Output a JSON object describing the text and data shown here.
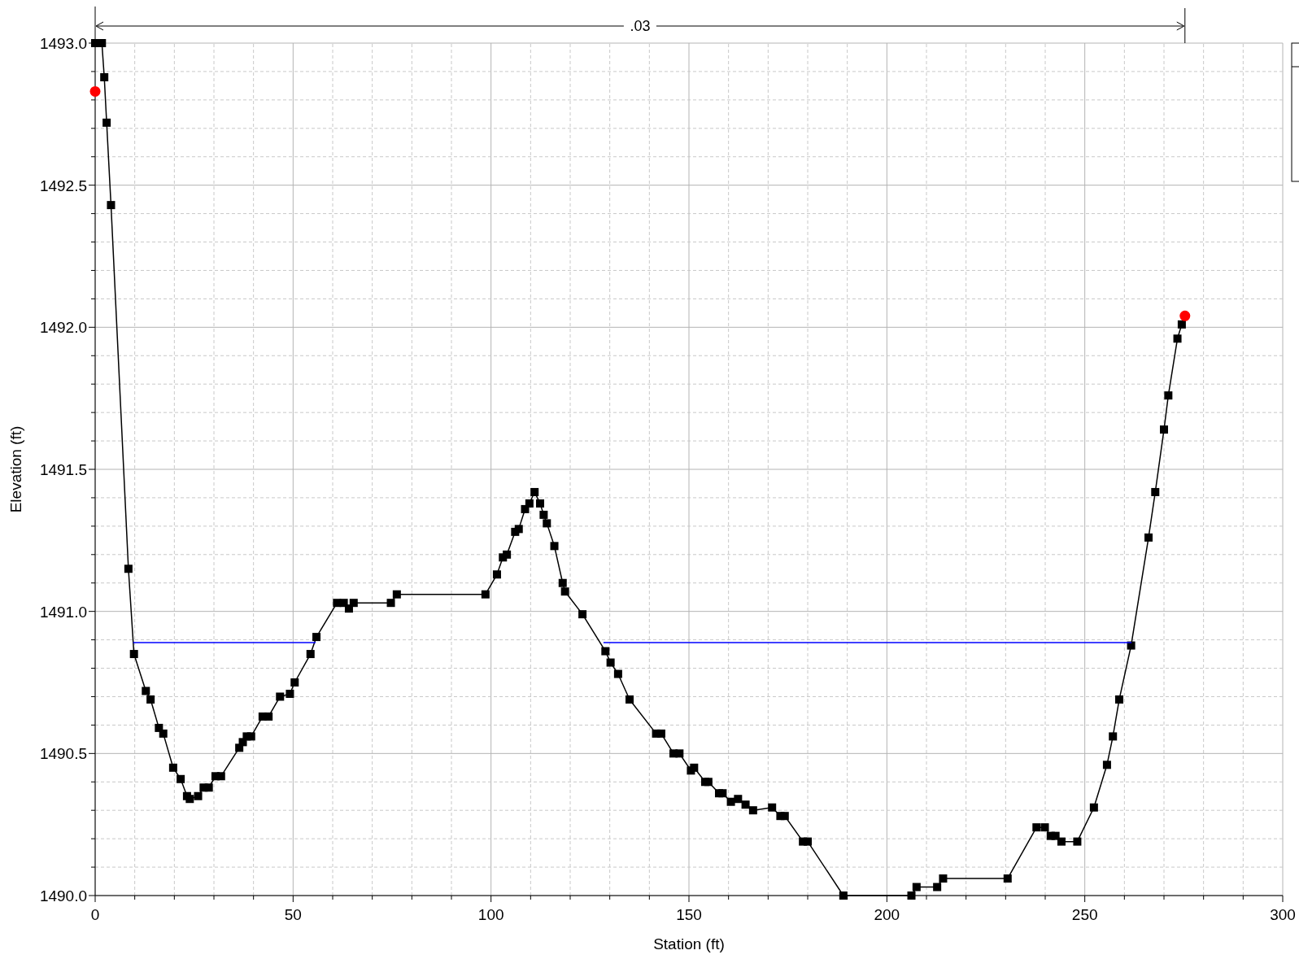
{
  "chart_data": {
    "type": "line",
    "xlabel": "Station (ft)",
    "ylabel": "Elevation (ft)",
    "xlim": [
      0,
      300
    ],
    "ylim": [
      1490,
      1493
    ],
    "xticks": [
      0,
      {
        "value": 10,
        "label": null
      },
      {
        "value": 20,
        "label": null
      },
      {
        "value": 30,
        "label": null
      },
      {
        "value": 40,
        "label": null
      },
      50,
      {
        "value": 60,
        "label": null
      },
      {
        "value": 70,
        "label": null
      },
      {
        "value": 80,
        "label": null
      },
      {
        "value": 90,
        "label": null
      },
      100,
      {
        "value": 110,
        "label": null
      },
      {
        "value": 120,
        "label": null
      },
      {
        "value": 130,
        "label": null
      },
      {
        "value": 140,
        "label": null
      },
      150,
      {
        "value": 160,
        "label": null
      },
      {
        "value": 170,
        "label": null
      },
      {
        "value": 180,
        "label": null
      },
      {
        "value": 190,
        "label": null
      },
      200,
      {
        "value": 210,
        "label": null
      },
      {
        "value": 220,
        "label": null
      },
      {
        "value": 230,
        "label": null
      },
      {
        "value": 240,
        "label": null
      },
      250,
      {
        "value": 260,
        "label": null
      },
      {
        "value": 270,
        "label": null
      },
      {
        "value": 280,
        "label": null
      },
      {
        "value": 290,
        "label": null
      },
      300
    ],
    "yticks": [
      {
        "value": 1490,
        "label": "1490.0"
      },
      {
        "value": 1490.1,
        "label": null
      },
      {
        "value": 1490.2,
        "label": null
      },
      {
        "value": 1490.3,
        "label": null
      },
      {
        "value": 1490.4,
        "label": null
      },
      {
        "value": 1490.5,
        "label": "1490.5"
      },
      {
        "value": 1490.6,
        "label": null
      },
      {
        "value": 1490.7,
        "label": null
      },
      {
        "value": 1490.8,
        "label": null
      },
      {
        "value": 1490.9,
        "label": null
      },
      {
        "value": 1491,
        "label": "1491.0"
      },
      {
        "value": 1491.1,
        "label": null
      },
      {
        "value": 1491.2,
        "label": null
      },
      {
        "value": 1491.3,
        "label": null
      },
      {
        "value": 1491.4,
        "label": null
      },
      {
        "value": 1491.5,
        "label": "1491.5"
      },
      {
        "value": 1491.6,
        "label": null
      },
      {
        "value": 1491.7,
        "label": null
      },
      {
        "value": 1491.8,
        "label": null
      },
      {
        "value": 1491.9,
        "label": null
      },
      {
        "value": 1492,
        "label": "1492.0"
      },
      {
        "value": 1492.1,
        "label": null
      },
      {
        "value": 1492.2,
        "label": null
      },
      {
        "value": 1492.3,
        "label": null
      },
      {
        "value": 1492.4,
        "label": null
      },
      {
        "value": 1492.5,
        "label": "1492.5"
      },
      {
        "value": 1492.6,
        "label": null
      },
      {
        "value": 1492.7,
        "label": null
      },
      {
        "value": 1492.8,
        "label": null
      },
      {
        "value": 1492.9,
        "label": null
      },
      {
        "value": 1493,
        "label": "1493.0"
      }
    ],
    "grid": true,
    "annotations": [
      ".03"
    ],
    "series": [
      {
        "color": "#0000ff",
        "marker": "none",
        "x": [
          9.6,
          55.7,
          55.8,
          128.3,
          128.4,
          261.8
        ],
        "values": [
          1490.89,
          1490.89,
          null,
          null,
          1490.89,
          1490.89
        ]
      },
      {
        "color": "#000000",
        "marker": "square",
        "x": [
          0,
          0.8,
          1.7,
          2.3,
          2.9,
          4.0,
          8.4,
          9.8,
          12.8,
          14.0,
          16.1,
          17.2,
          19.7,
          21.6,
          23.2,
          23.9,
          26.0,
          27.4,
          28.7,
          30.4,
          31.8,
          36.4,
          37.3,
          38.3,
          39.4,
          42.3,
          43.8,
          46.7,
          49.2,
          50.4,
          54.4,
          55.9,
          61.1,
          62.8,
          64.1,
          65.3,
          74.7,
          76.2,
          98.6,
          101.5,
          103.0,
          104.0,
          106.1,
          107.0,
          108.6,
          109.7,
          111.0,
          112.4,
          113.3,
          114.1,
          116.0,
          118.1,
          118.7,
          123.1,
          128.9,
          130.2,
          132.1,
          135.0,
          141.7,
          143.0,
          146.1,
          147.6,
          150.5,
          151.3,
          154.1,
          154.9,
          157.6,
          158.5,
          160.6,
          162.4,
          164.3,
          166.2,
          171.0,
          173.1,
          174.2,
          178.8,
          180.0,
          189.0,
          206.2,
          207.5,
          212.7,
          214.2,
          230.5,
          237.8,
          239.9,
          241.4,
          242.6,
          244.1,
          248.1,
          252.3,
          255.6,
          257.1,
          258.7,
          261.7,
          266.1,
          267.8,
          270.0,
          271.1,
          273.4,
          274.5
        ],
        "values": [
          1493.0,
          1493.0,
          1493.0,
          1492.88,
          1492.72,
          1492.43,
          1491.15,
          1490.85,
          1490.72,
          1490.69,
          1490.59,
          1490.57,
          1490.45,
          1490.41,
          1490.35,
          1490.34,
          1490.35,
          1490.38,
          1490.38,
          1490.42,
          1490.42,
          1490.52,
          1490.54,
          1490.56,
          1490.56,
          1490.63,
          1490.63,
          1490.7,
          1490.71,
          1490.75,
          1490.85,
          1490.91,
          1491.03,
          1491.03,
          1491.01,
          1491.03,
          1491.03,
          1491.06,
          1491.06,
          1491.13,
          1491.19,
          1491.2,
          1491.28,
          1491.29,
          1491.36,
          1491.38,
          1491.42,
          1491.38,
          1491.34,
          1491.31,
          1491.23,
          1491.1,
          1491.07,
          1490.99,
          1490.86,
          1490.82,
          1490.78,
          1490.69,
          1490.57,
          1490.57,
          1490.5,
          1490.5,
          1490.44,
          1490.45,
          1490.4,
          1490.4,
          1490.36,
          1490.36,
          1490.33,
          1490.34,
          1490.32,
          1490.3,
          1490.31,
          1490.28,
          1490.28,
          1490.19,
          1490.19,
          1490.0,
          1490.0,
          1490.03,
          1490.03,
          1490.06,
          1490.06,
          1490.24,
          1490.24,
          1490.21,
          1490.21,
          1490.19,
          1490.19,
          1490.31,
          1490.46,
          1490.56,
          1490.69,
          1490.88,
          1491.26,
          1491.42,
          1491.64,
          1491.76,
          1491.96,
          1492.01
        ]
      },
      {
        "type": "scatter",
        "color": "#ff0000",
        "marker": "circle",
        "x": [
          0,
          275.3
        ],
        "values": [
          1492.83,
          1492.04
        ]
      }
    ]
  }
}
